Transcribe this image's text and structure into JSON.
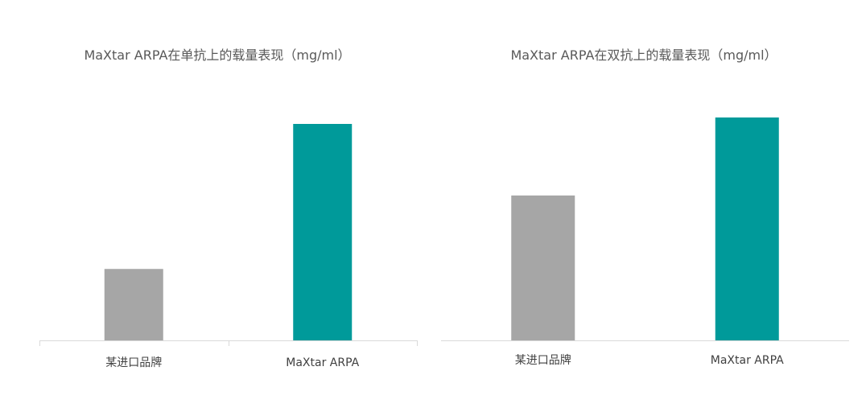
{
  "chart_data": [
    {
      "type": "bar",
      "title": "MaXtar ARPA在单抗上的载量表现（mg/ml）",
      "categories": [
        "某进口品牌",
        "MaXtar ARPA"
      ],
      "values": [
        0.33,
        1.0
      ],
      "colors": [
        "#a6a6a6",
        "#009a9a"
      ],
      "ylim": [
        0,
        1.0
      ],
      "grid": false,
      "legend": "none"
    },
    {
      "type": "bar",
      "title": "MaXtar ARPA在双抗上的载量表现（mg/ml）",
      "categories": [
        "某进口品牌",
        "MaXtar ARPA"
      ],
      "values": [
        0.65,
        1.0
      ],
      "colors": [
        "#a6a6a6",
        "#009a9a"
      ],
      "ylim": [
        0,
        1.0
      ],
      "grid": false,
      "legend": "none"
    }
  ]
}
